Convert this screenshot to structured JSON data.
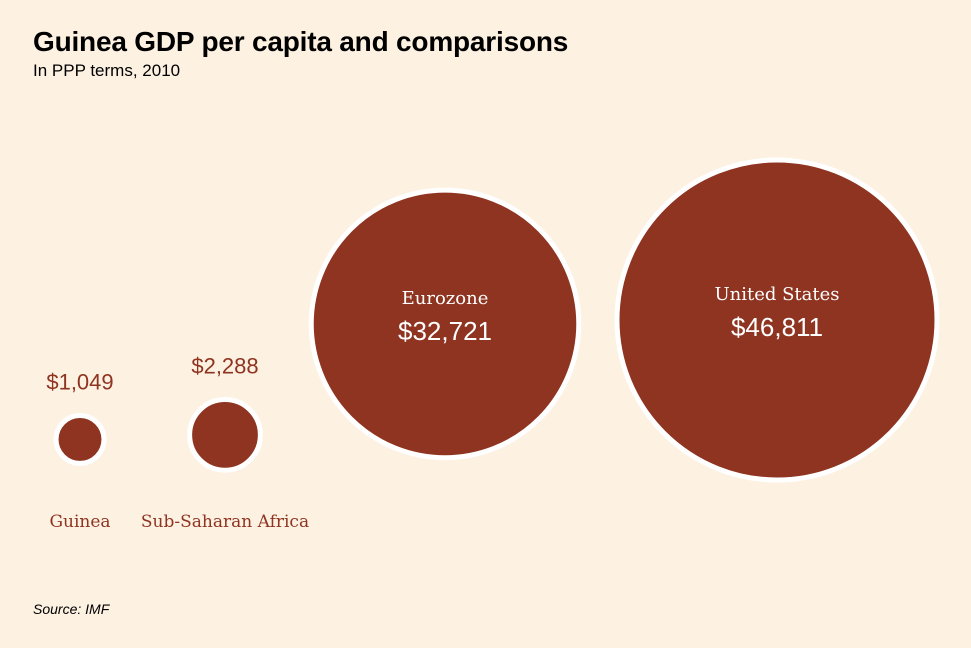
{
  "header": {
    "title": "Guinea GDP per capita and comparisons",
    "subtitle": "In PPP terms, 2010"
  },
  "footer": {
    "source": "Source: IMF"
  },
  "colors": {
    "bubble_fill": "#8e3420",
    "bubble_stroke": "#ffffff",
    "background": "#fdf1e2",
    "outside_label": "#8e3420",
    "inside_label": "#ffffff"
  },
  "chart_data": {
    "type": "bubble",
    "title": "Guinea GDP per capita and comparisons",
    "subtitle": "In PPP terms, 2010",
    "categories": [
      "Guinea",
      "Sub-Saharan Africa",
      "Eurozone",
      "United States"
    ],
    "values": [
      1049,
      2288,
      32721,
      46811
    ],
    "value_labels": [
      "$1,049",
      "$2,288",
      "$32,721",
      "$46,811"
    ],
    "source": "Source: IMF"
  }
}
